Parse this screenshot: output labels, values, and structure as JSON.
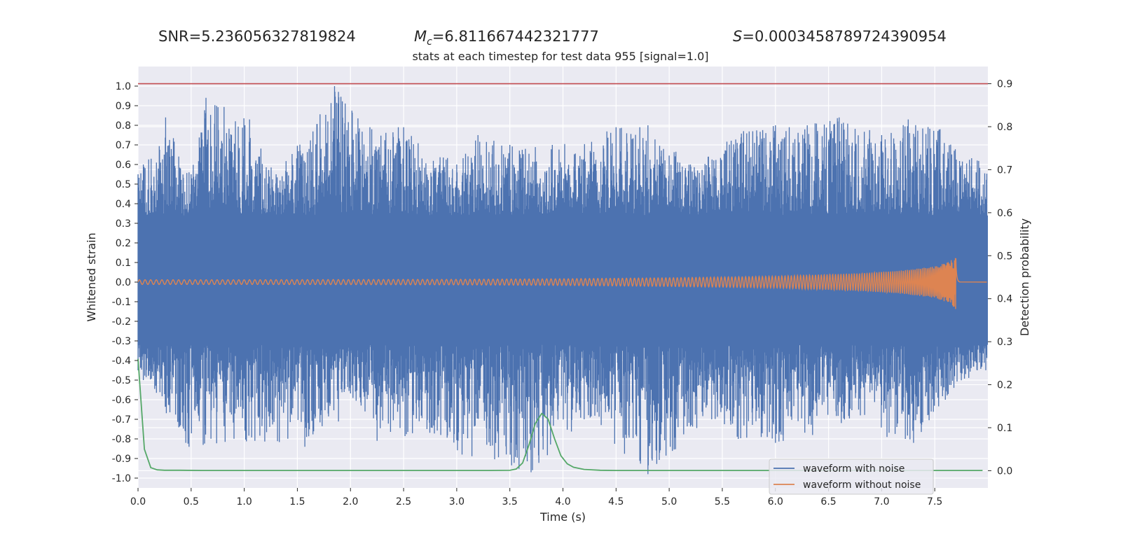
{
  "header": {
    "snr_text": "SNR=5.236056327819824",
    "mc_symbol": "M",
    "mc_sub": "c",
    "mc_value": "=6.811667442321777",
    "s_symbol": "S",
    "s_value": "=0.0003458789724390954",
    "subtitle": "stats at each timestep for test data 955 [signal=1.0]"
  },
  "colors": {
    "background": "#ffffff",
    "plot_bg": "#eaeaf2",
    "grid": "#ffffff",
    "noise": "#4c72b0",
    "clean": "#dd8452",
    "probability": "#55a868",
    "threshold": "#c44e52"
  },
  "chart_data": {
    "type": "line",
    "title": "stats at each timestep for test data 955 [signal=1.0]",
    "xlabel": "Time (s)",
    "ylabel": "Whitened strain",
    "y2label": "Detection probability",
    "xlim": [
      0.0,
      8.0
    ],
    "ylim": [
      -1.05,
      1.1
    ],
    "y2lim": [
      -0.04,
      0.94
    ],
    "x_ticks": [
      "0.0",
      "0.5",
      "1.0",
      "1.5",
      "2.0",
      "2.5",
      "3.0",
      "3.5",
      "4.0",
      "4.5",
      "5.0",
      "5.5",
      "6.0",
      "6.5",
      "7.0",
      "7.5"
    ],
    "y_ticks": [
      "1.0",
      "0.9",
      "0.8",
      "0.7",
      "0.6",
      "0.5",
      "0.4",
      "0.3",
      "0.2",
      "0.1",
      "0.0",
      "-0.1",
      "-0.2",
      "-0.3",
      "-0.4",
      "-0.5",
      "-0.6",
      "-0.7",
      "-0.8",
      "-0.9",
      "-1.0"
    ],
    "y2_ticks": [
      "0.9",
      "0.8",
      "0.7",
      "0.6",
      "0.5",
      "0.4",
      "0.3",
      "0.2",
      "0.1",
      "0.0"
    ],
    "grid": true,
    "legend_position": "lower-right",
    "legend": [
      "waveform with noise",
      "waveform without noise"
    ],
    "threshold": {
      "axis": "y2",
      "value": 0.9
    },
    "noisy_waveform": {
      "name": "waveform with noise",
      "dense_band": [
        -0.32,
        0.34
      ],
      "upper_envelope": [
        [
          0.0,
          0.55
        ],
        [
          0.05,
          0.6
        ],
        [
          0.26,
          0.84
        ],
        [
          0.5,
          0.55
        ],
        [
          0.64,
          0.94
        ],
        [
          1.05,
          0.83
        ],
        [
          1.3,
          0.55
        ],
        [
          1.85,
          1.0
        ],
        [
          2.2,
          0.78
        ],
        [
          2.45,
          0.79
        ],
        [
          2.5,
          0.79
        ],
        [
          3.0,
          0.6
        ],
        [
          3.2,
          0.75
        ],
        [
          3.5,
          0.7
        ],
        [
          3.9,
          0.7
        ],
        [
          4.5,
          0.79
        ],
        [
          4.8,
          0.8
        ],
        [
          5.2,
          0.6
        ],
        [
          5.7,
          0.77
        ],
        [
          6.0,
          0.8
        ],
        [
          6.3,
          0.8
        ],
        [
          6.6,
          0.84
        ],
        [
          7.0,
          0.75
        ],
        [
          7.25,
          0.83
        ],
        [
          7.55,
          0.78
        ],
        [
          7.9,
          0.62
        ]
      ],
      "lower_envelope": [
        [
          0.0,
          -0.45
        ],
        [
          0.05,
          -0.5
        ],
        [
          0.45,
          -0.82
        ],
        [
          0.48,
          -0.84
        ],
        [
          1.1,
          -0.81
        ],
        [
          1.57,
          -0.84
        ],
        [
          2.1,
          -0.63
        ],
        [
          2.25,
          -0.81
        ],
        [
          2.85,
          -0.78
        ],
        [
          3.05,
          -0.88
        ],
        [
          3.7,
          -0.97
        ],
        [
          4.2,
          -0.7
        ],
        [
          4.8,
          -0.98
        ],
        [
          5.4,
          -0.7
        ],
        [
          5.65,
          -0.8
        ],
        [
          6.0,
          -0.82
        ],
        [
          6.35,
          -0.78
        ],
        [
          6.8,
          -0.68
        ],
        [
          7.05,
          -0.79
        ],
        [
          7.3,
          -0.82
        ],
        [
          7.6,
          -0.6
        ],
        [
          7.9,
          -0.45
        ]
      ]
    },
    "clean_waveform": {
      "name": "waveform without noise",
      "amplitude_envelope": [
        [
          0.0,
          0.012
        ],
        [
          1.0,
          0.012
        ],
        [
          2.0,
          0.013
        ],
        [
          3.0,
          0.014
        ],
        [
          4.0,
          0.017
        ],
        [
          5.0,
          0.022
        ],
        [
          6.0,
          0.03
        ],
        [
          6.8,
          0.045
        ],
        [
          7.2,
          0.06
        ],
        [
          7.5,
          0.08
        ],
        [
          7.65,
          0.11
        ],
        [
          7.7,
          0.14
        ]
      ],
      "merger_time": 7.7,
      "ringdown_end": 7.74
    },
    "probability_series": {
      "axis": "y2",
      "x": [
        0.0,
        0.06,
        0.12,
        0.18,
        0.25,
        0.4,
        0.6,
        1.0,
        1.5,
        2.0,
        2.5,
        3.0,
        3.3,
        3.5,
        3.56,
        3.62,
        3.68,
        3.74,
        3.8,
        3.86,
        3.92,
        3.98,
        4.04,
        4.1,
        4.2,
        4.35,
        4.5,
        5.0,
        6.0,
        7.0,
        7.5,
        7.95
      ],
      "y": [
        0.26,
        0.05,
        0.007,
        0.002,
        0.001,
        0.001,
        0.0005,
        0.0005,
        0.0005,
        0.0005,
        0.0005,
        0.0005,
        0.0005,
        0.0008,
        0.004,
        0.018,
        0.06,
        0.11,
        0.133,
        0.12,
        0.075,
        0.035,
        0.016,
        0.008,
        0.003,
        0.001,
        0.0005,
        0.0005,
        0.0005,
        0.0005,
        0.0005,
        0.0005
      ]
    }
  }
}
